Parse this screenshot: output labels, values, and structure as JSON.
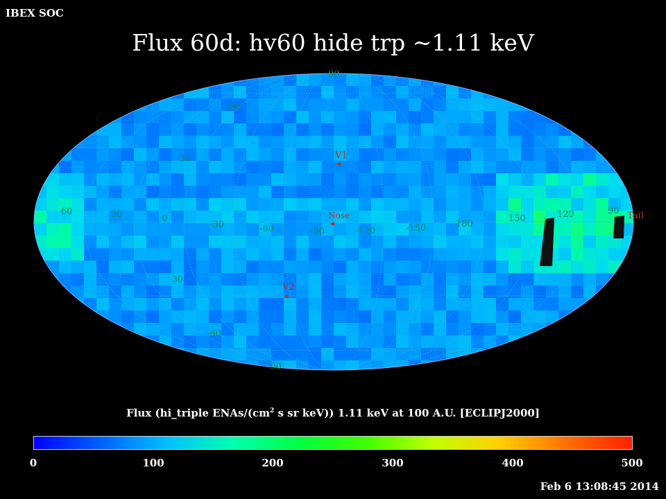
{
  "header": {
    "org": "IBEX SOC",
    "title": "Flux   60d: hv60 hide trp ~1.11 keV"
  },
  "map": {
    "projection": "Aitoff / Mollweide all-sky (ecliptic)",
    "lat_labels": [
      "90",
      "60",
      "30",
      "-30",
      "-60",
      "-90"
    ],
    "lon_labels": [
      "60",
      "30",
      "0",
      "-30",
      "-60",
      "-90",
      "-120",
      "-150",
      "180",
      "150",
      "120",
      "90"
    ],
    "markers": [
      {
        "label": "V1",
        "lon": -95,
        "lat": 34
      },
      {
        "label": "Nose",
        "lon": -105,
        "lat": 5
      },
      {
        "label": "V2",
        "lon": -70,
        "lat": -34
      },
      {
        "label": "Tail",
        "lon": 75,
        "lat": -5
      }
    ],
    "colors": {
      "graticule": "#2a8f8f",
      "marker": "#c03020",
      "label": "#1a8a5a"
    }
  },
  "colorbar": {
    "title_pre": "Flux (hi_triple ENAs/(cm",
    "title_sup": "2",
    "title_post": " s sr keV))  1.11 keV at 100 A.U. [ECLIPJ2000]",
    "ticks": [
      "0",
      "100",
      "200",
      "300",
      "400",
      "500"
    ],
    "range": [
      0,
      500
    ],
    "stops": [
      "#0000ff",
      "#0060ff",
      "#00c0ff",
      "#00ffb0",
      "#00ff40",
      "#40ff00",
      "#c0ff00",
      "#ffd000",
      "#ff7000",
      "#ff2000"
    ]
  },
  "timestamp": "Feb  6 13:08:45 2014"
}
